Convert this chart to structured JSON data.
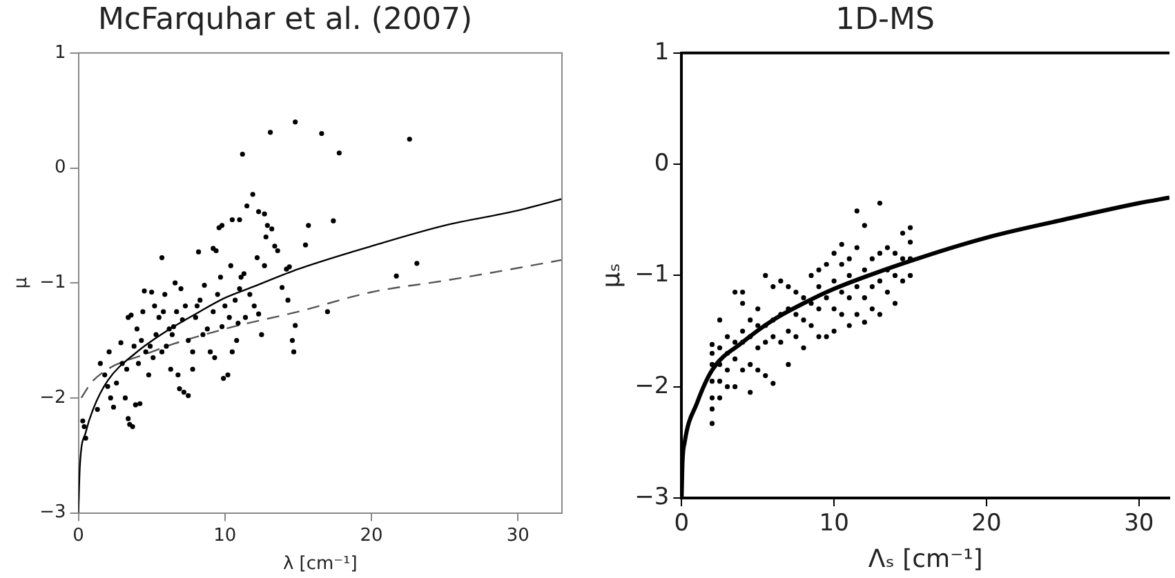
{
  "chart_data": [
    {
      "type": "scatter",
      "title": "McFarquhar et al. (2007)",
      "xlabel": "λ [cm⁻¹]",
      "ylabel": "μ",
      "xlim": [
        0,
        33
      ],
      "ylim": [
        -3,
        1
      ],
      "xticks": [
        0,
        10,
        20,
        30
      ],
      "yticks": [
        -3,
        -2,
        -1,
        0,
        1
      ],
      "grid": false,
      "legend": false,
      "series": [
        {
          "marker": "circle",
          "color": "#000000",
          "x": [
            13.1,
            14.8,
            16.6,
            17.8,
            22.6,
            11.2,
            17.4,
            15.7,
            15.5,
            23.1,
            21.7,
            17,
            14.7,
            14.6,
            14.8,
            11.9,
            11.5,
            11,
            12.3,
            12.7,
            12.9,
            13.2,
            12.8,
            13.4,
            9.8,
            9.6,
            10.5,
            5.7,
            8.2,
            9.2,
            9.4,
            12.2,
            12.7,
            13.6,
            10.4,
            11.3,
            11.1,
            14.2,
            14.4,
            13.9,
            14.3,
            12.5,
            12.3,
            9.9,
            10.2,
            10.5,
            10.8,
            7.2,
            7.5,
            6.9,
            3.5,
            3.7,
            3.4,
            3.9,
            4.2,
            3.2,
            0.3,
            0.4,
            0.5,
            1.3,
            2.4,
            2.2,
            2,
            2.1,
            1.5,
            1.8,
            2.6,
            3,
            3.3,
            3.4,
            3.6,
            4.5,
            5,
            5.9,
            4.3,
            4.6,
            4.1,
            4.8,
            5.1,
            5.3,
            5.5,
            5.2,
            6,
            6.2,
            6.5,
            6.7,
            6.6,
            7,
            7.3,
            7.5,
            7.8,
            8,
            8.3,
            8.6,
            8.8,
            9,
            9.3,
            9.2,
            9.5,
            9.7,
            10,
            10.3,
            10.7,
            11,
            11.4,
            11.7,
            12,
            4,
            4.4,
            5.7,
            6.3,
            6.8,
            7.8,
            8.5,
            3.8,
            2.9,
            6.4,
            9.8,
            8.1,
            10.9,
            7.1,
            5.8,
            4.9
          ],
          "values": [
            0.31,
            0.4,
            0.3,
            0.13,
            0.25,
            0.12,
            -0.46,
            -0.5,
            -0.67,
            -0.83,
            -0.94,
            -1.25,
            -1.6,
            -1.5,
            -1.37,
            -0.23,
            -0.33,
            -0.45,
            -0.38,
            -0.4,
            -0.5,
            -0.53,
            -0.6,
            -0.68,
            -0.5,
            -0.52,
            -0.45,
            -0.78,
            -0.73,
            -0.7,
            -0.72,
            -0.78,
            -0.85,
            -0.72,
            -0.85,
            -0.92,
            -0.95,
            -0.88,
            -0.86,
            -1.04,
            -1.15,
            -1.45,
            -1.27,
            -1.83,
            -1.8,
            -1.6,
            -1.5,
            -1.95,
            -1.98,
            -1.92,
            -2.23,
            -2.25,
            -2.18,
            -2.06,
            -2.05,
            -2,
            -2.2,
            -2.25,
            -2.35,
            -2.1,
            -2.08,
            -2,
            -1.9,
            -1.6,
            -1.7,
            -1.8,
            -1.87,
            -1.7,
            -1.75,
            -1.3,
            -1.28,
            -1.07,
            -1.08,
            -1.1,
            -1.5,
            -1.6,
            -1.7,
            -1.8,
            -1.65,
            -1.45,
            -1.3,
            -1.2,
            -1.55,
            -1.4,
            -1.38,
            -1.25,
            -1,
            -1.05,
            -1.2,
            -1.5,
            -1.6,
            -1.3,
            -1.15,
            -1.02,
            -1.4,
            -1.6,
            -1.65,
            -1.25,
            -1.1,
            -0.95,
            -1.2,
            -1.3,
            -1.15,
            -1.05,
            -1.3,
            -1.1,
            -1.2,
            -1.4,
            -1.25,
            -1.6,
            -1.75,
            -1.8,
            -1.75,
            -1.45,
            -1.55,
            -1.52,
            -1.45,
            -1.38,
            -1.2,
            -1.35,
            -1.32,
            -1.25,
            -1.55
          ]
        },
        {
          "type": "line",
          "marker": "none",
          "color": "#000000",
          "line_style": "solid",
          "x": [
            0,
            0.1,
            0.5,
            1,
            2,
            4,
            6,
            8,
            10,
            12,
            15,
            20,
            25,
            30,
            33
          ],
          "values": [
            -3,
            -2.6,
            -2.3,
            -2.1,
            -1.85,
            -1.6,
            -1.42,
            -1.27,
            -1.13,
            -1.03,
            -0.88,
            -0.68,
            -0.5,
            -0.37,
            -0.27
          ]
        },
        {
          "type": "line",
          "marker": "none",
          "color": "#555555",
          "line_style": "dashed",
          "x": [
            0.2,
            1,
            5,
            10,
            15,
            20,
            25,
            30,
            33
          ],
          "values": [
            -2,
            -1.85,
            -1.6,
            -1.4,
            -1.25,
            -1.08,
            -0.98,
            -0.87,
            -0.8
          ]
        }
      ]
    },
    {
      "type": "scatter",
      "title": "1D-MS",
      "xlabel": "Λₛ [cm⁻¹]",
      "ylabel": "μₛ",
      "xlim": [
        0,
        32
      ],
      "ylim": [
        -3,
        1
      ],
      "xticks": [
        0,
        10,
        20,
        30
      ],
      "yticks": [
        -3,
        -2,
        -1,
        0,
        1
      ],
      "grid": false,
      "legend": false,
      "series": [
        {
          "marker": "circle",
          "color": "#000000",
          "x": [
            2,
            2,
            2,
            2,
            2,
            2,
            2,
            2.5,
            2.5,
            2.5,
            2.5,
            2.5,
            3,
            3,
            3,
            3,
            3.5,
            3.5,
            3.5,
            3.5,
            4,
            4,
            4,
            4,
            4,
            4.5,
            4.5,
            4.5,
            4.5,
            5,
            5,
            5,
            5,
            5.5,
            5.5,
            5.5,
            5.5,
            6,
            6,
            6,
            6,
            6.5,
            6.5,
            6.5,
            7,
            7,
            7,
            7,
            7.5,
            7.5,
            7.5,
            8,
            8,
            8,
            8.5,
            8.5,
            8.5,
            9,
            9,
            9,
            9,
            9.5,
            9.5,
            9.5,
            10,
            10,
            10,
            10,
            10.5,
            10.5,
            10.5,
            10.5,
            11,
            11,
            11,
            11,
            11.5,
            11.5,
            11.5,
            11.5,
            12,
            12,
            12,
            12,
            12.5,
            12.5,
            12.5,
            13,
            13,
            13,
            13,
            13.5,
            13.5,
            13.5,
            14,
            14,
            14,
            14.5,
            14.5,
            14.5,
            15,
            15,
            15,
            15
          ],
          "values": [
            -2.33,
            -2.2,
            -2.1,
            -1.95,
            -1.8,
            -1.7,
            -1.62,
            -2.1,
            -1.95,
            -1.8,
            -1.65,
            -1.4,
            -2,
            -1.85,
            -1.7,
            -1.55,
            -2,
            -1.75,
            -1.6,
            -1.15,
            -1.85,
            -1.6,
            -1.5,
            -1.15,
            -1.25,
            -2.05,
            -1.8,
            -1.55,
            -1.4,
            -1.85,
            -1.65,
            -1.45,
            -1.3,
            -1.9,
            -1.6,
            -1.45,
            -1,
            -1.97,
            -1.55,
            -1.4,
            -1.1,
            -1.6,
            -1.35,
            -1.05,
            -1.8,
            -1.5,
            -1.3,
            -1.1,
            -1.55,
            -1.35,
            -1.15,
            -1.65,
            -1.4,
            -1.2,
            -1.45,
            -1.25,
            -1,
            -1.55,
            -1.3,
            -1.1,
            -0.95,
            -1.55,
            -1.2,
            -0.9,
            -1.5,
            -1.3,
            -1.05,
            -0.8,
            -1.35,
            -1.15,
            -0.9,
            -0.72,
            -1.45,
            -1.2,
            -1,
            -0.85,
            -1.35,
            -1.1,
            -0.75,
            -0.42,
            -1.42,
            -1.2,
            -0.95,
            -0.55,
            -1.3,
            -1.1,
            -0.85,
            -1.35,
            -1.05,
            -0.8,
            -0.35,
            -1.15,
            -0.95,
            -0.75,
            -1.25,
            -1,
            -0.8,
            -1.05,
            -0.85,
            -0.62,
            -1,
            -0.85,
            -0.7,
            -0.57
          ]
        },
        {
          "type": "line",
          "marker": "none",
          "color": "#000000",
          "line_style": "solid",
          "x": [
            0,
            0.05,
            0.2,
            1,
            2,
            4,
            6,
            8,
            10,
            15,
            20,
            25,
            30,
            32
          ],
          "values": [
            -3,
            -2.7,
            -2.5,
            -2.15,
            -1.85,
            -1.6,
            -1.4,
            -1.25,
            -1.12,
            -0.87,
            -0.66,
            -0.5,
            -0.35,
            -0.3
          ]
        }
      ]
    }
  ]
}
